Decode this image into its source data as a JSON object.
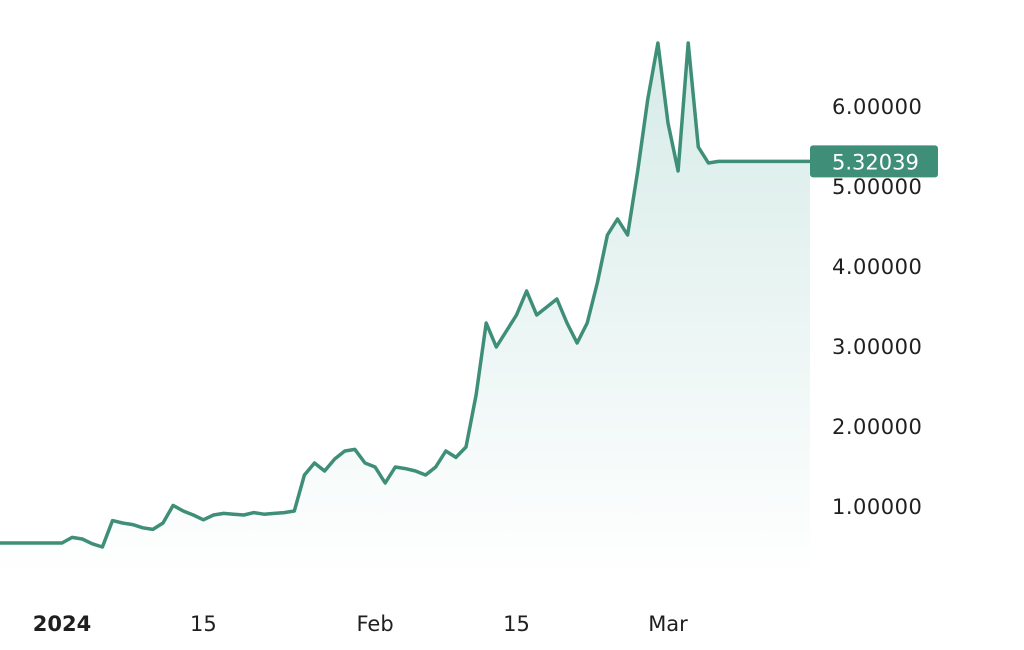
{
  "colors": {
    "line": "#3f8f78",
    "area_top": "#d6ebe7",
    "area_bottom": "#ffffff",
    "badge_bg": "#3f8f78",
    "badge_text": "#ffffff",
    "tick_text": "#1f1f1f"
  },
  "chart_data": {
    "type": "area",
    "title": "",
    "xlabel": "",
    "ylabel": "",
    "grid": false,
    "ylim": [
      0,
      7
    ],
    "x_tick_labels": [
      {
        "date": "2024-01-01",
        "label": "2024",
        "bold": true
      },
      {
        "date": "2024-01-15",
        "label": "15",
        "bold": false
      },
      {
        "date": "2024-02-01",
        "label": "Feb",
        "bold": false
      },
      {
        "date": "2024-02-15",
        "label": "15",
        "bold": false
      },
      {
        "date": "2024-03-01",
        "label": "Mar",
        "bold": false
      }
    ],
    "y_tick_labels": [
      {
        "value": 1,
        "label": "1.00000"
      },
      {
        "value": 2,
        "label": "2.00000"
      },
      {
        "value": 3,
        "label": "3.00000"
      },
      {
        "value": 4,
        "label": "4.00000"
      },
      {
        "value": 5,
        "label": "5.00000"
      },
      {
        "value": 6,
        "label": "6.00000"
      }
    ],
    "last_value": {
      "value": 5.32039,
      "label": "5.32039"
    },
    "series": [
      {
        "x": [
          "2024-01-01",
          "2024-01-02",
          "2024-01-03",
          "2024-01-04",
          "2024-01-05",
          "2024-01-06",
          "2024-01-07",
          "2024-01-08",
          "2024-01-09",
          "2024-01-10",
          "2024-01-11",
          "2024-01-12",
          "2024-01-13",
          "2024-01-14",
          "2024-01-15",
          "2024-01-16",
          "2024-01-17",
          "2024-01-18",
          "2024-01-19",
          "2024-01-20",
          "2024-01-21",
          "2024-01-22",
          "2024-01-23",
          "2024-01-24",
          "2024-01-25",
          "2024-01-26",
          "2024-01-27",
          "2024-01-28",
          "2024-01-29",
          "2024-01-30",
          "2024-01-31",
          "2024-02-01",
          "2024-02-02",
          "2024-02-03",
          "2024-02-04",
          "2024-02-05",
          "2024-02-06",
          "2024-02-07",
          "2024-02-08",
          "2024-02-09",
          "2024-02-10",
          "2024-02-11",
          "2024-02-12",
          "2024-02-13",
          "2024-02-14",
          "2024-02-15",
          "2024-02-16",
          "2024-02-17",
          "2024-02-18",
          "2024-02-19",
          "2024-02-20",
          "2024-02-21",
          "2024-02-22",
          "2024-02-23",
          "2024-02-24",
          "2024-02-25",
          "2024-02-26",
          "2024-02-27",
          "2024-02-28",
          "2024-02-29",
          "2024-03-01",
          "2024-03-02",
          "2024-03-03",
          "2024-03-04",
          "2024-03-05",
          "2024-03-06"
        ],
        "values": [
          0.55,
          0.62,
          0.6,
          0.54,
          0.5,
          0.83,
          0.8,
          0.78,
          0.74,
          0.72,
          0.8,
          1.02,
          0.95,
          0.9,
          0.84,
          0.9,
          0.92,
          0.91,
          0.9,
          0.93,
          0.91,
          0.92,
          0.93,
          0.95,
          1.4,
          1.55,
          1.45,
          1.6,
          1.7,
          1.72,
          1.55,
          1.5,
          1.3,
          1.5,
          1.48,
          1.45,
          1.4,
          1.5,
          1.7,
          1.62,
          1.75,
          2.4,
          3.3,
          3.0,
          3.2,
          3.4,
          3.7,
          3.4,
          3.5,
          3.6,
          3.3,
          3.05,
          3.3,
          3.8,
          4.4,
          4.6,
          4.4,
          5.2,
          6.1,
          6.8,
          5.8,
          5.2,
          6.8,
          5.5,
          5.3,
          5.32
        ]
      }
    ]
  }
}
